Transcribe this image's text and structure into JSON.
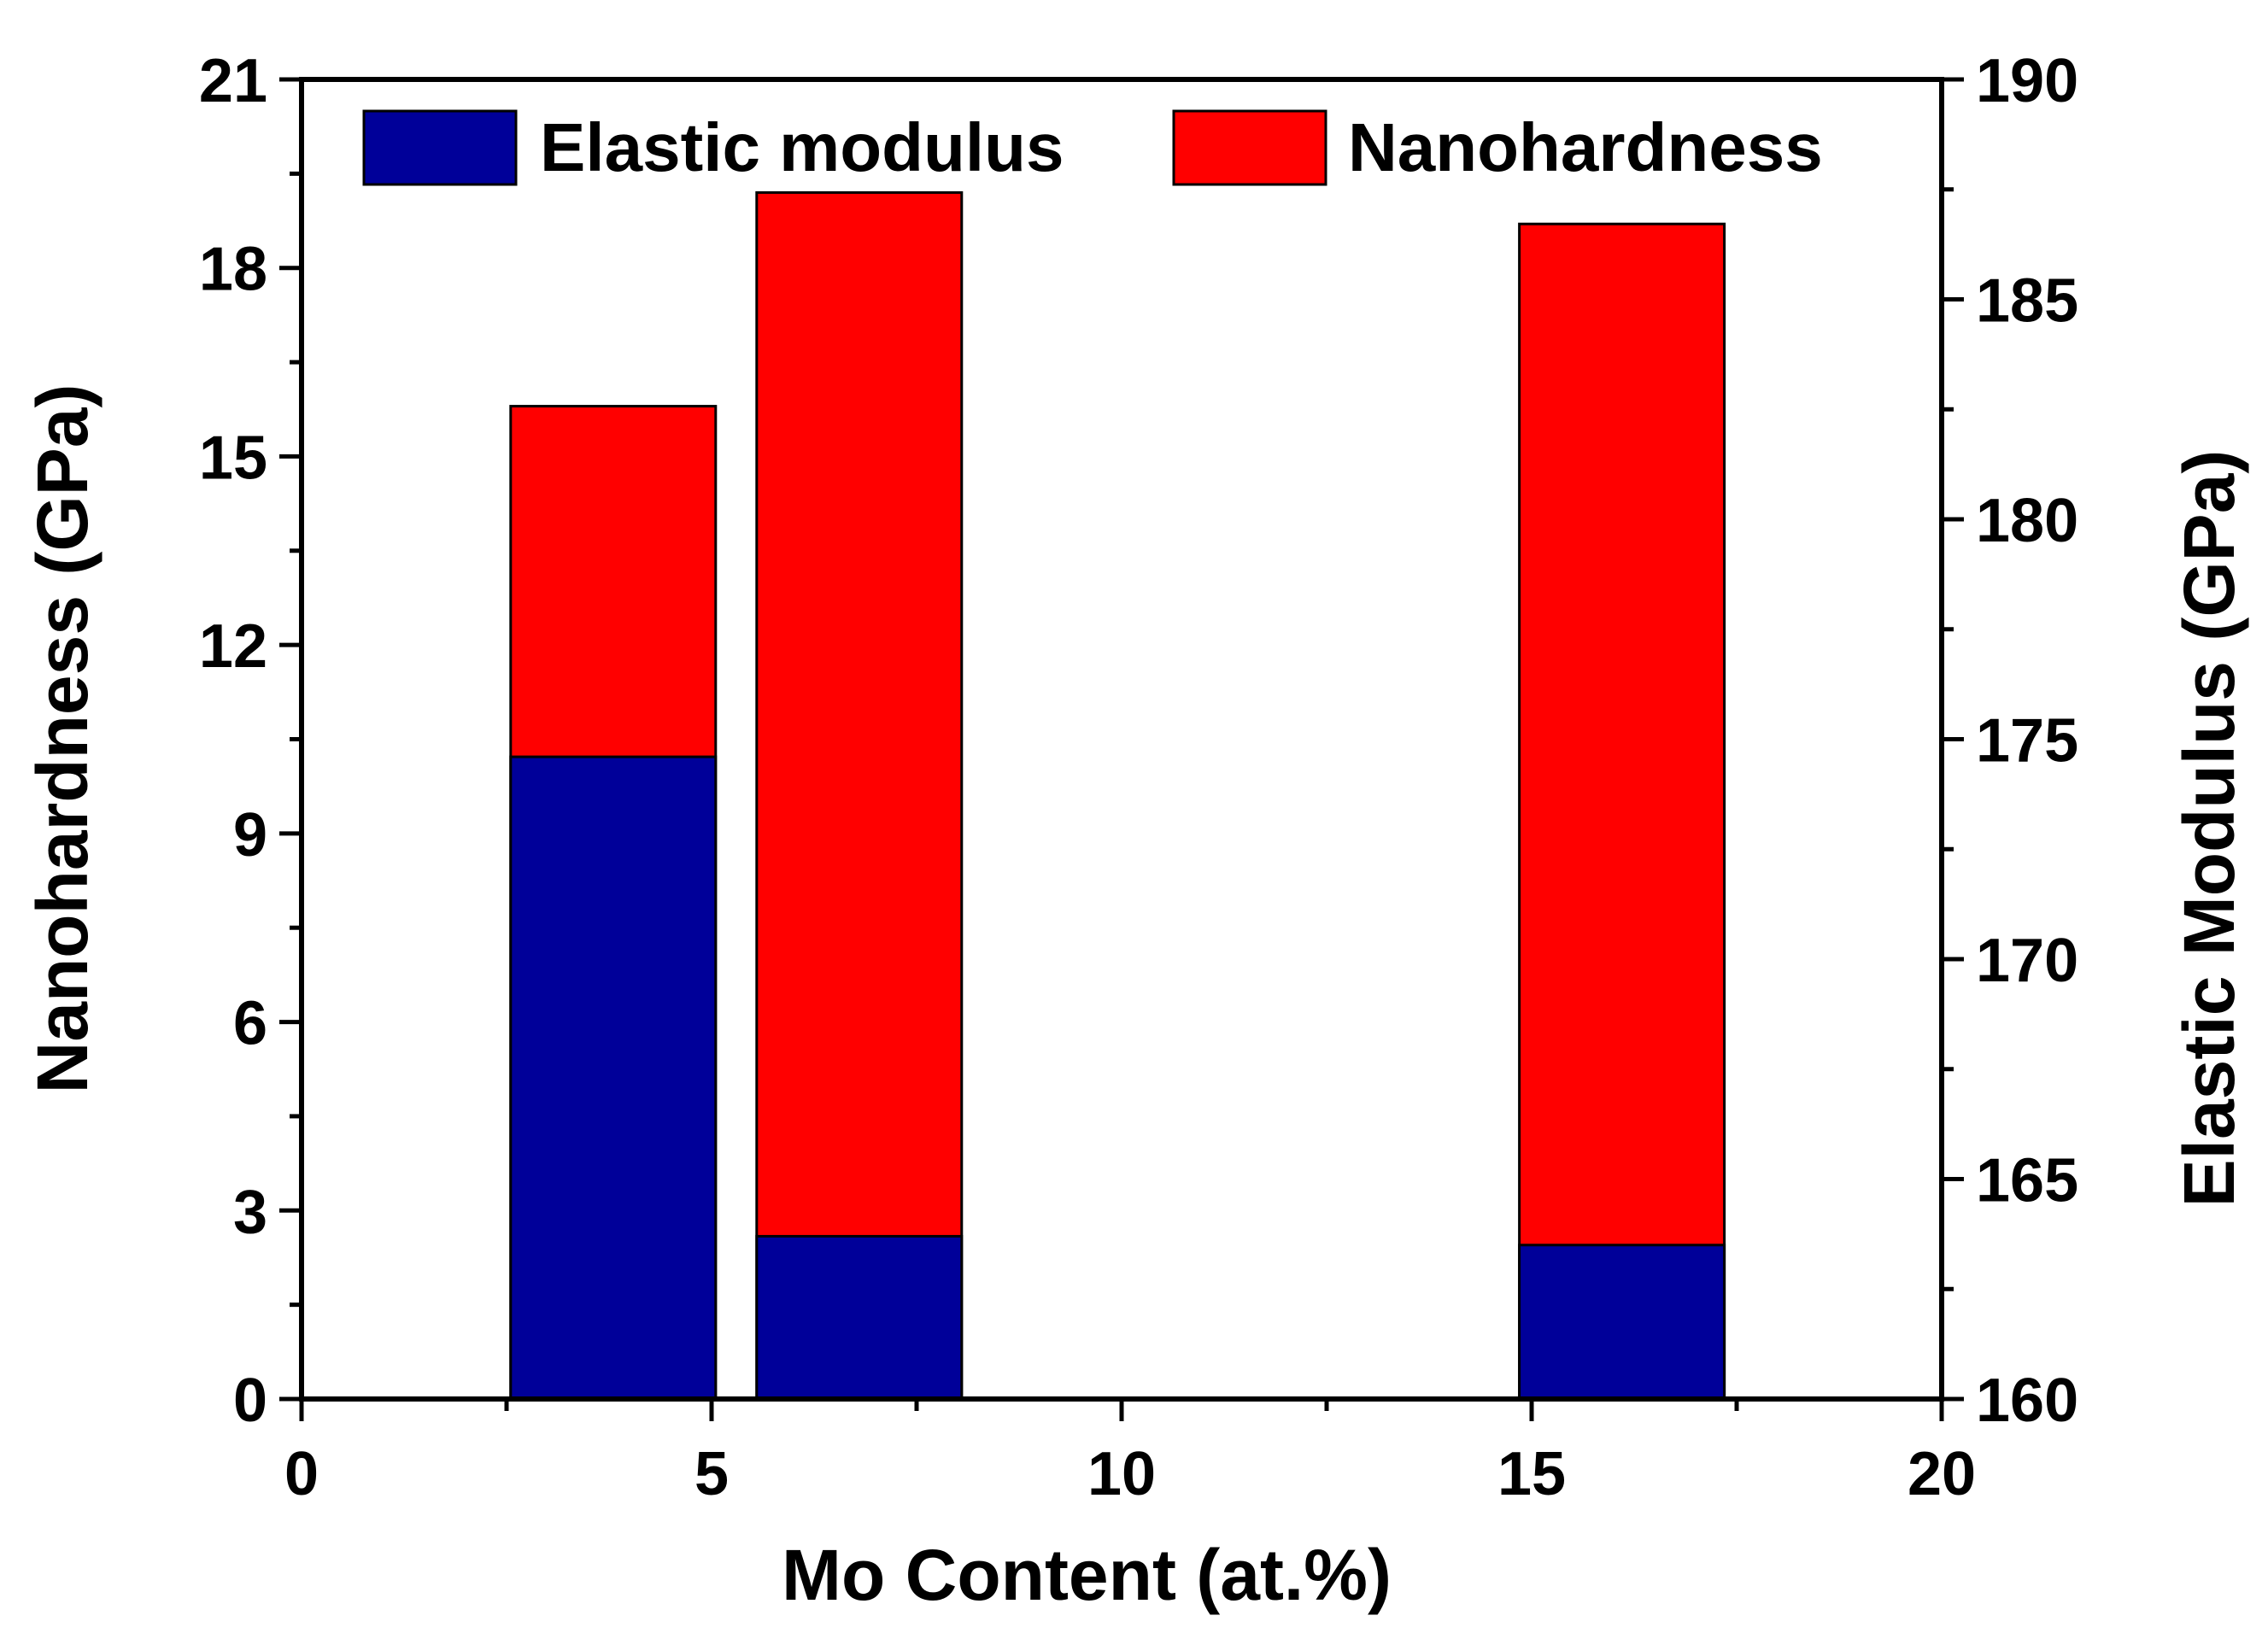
{
  "chart_data": {
    "type": "bar",
    "stacked": true,
    "title": "",
    "xlabel": "Mo Content (at.%)",
    "ylabel": "Nanohardness (GPa)",
    "y2label": "Elastic Modulus (GPa)",
    "xlim": [
      0,
      20
    ],
    "ylim": [
      0,
      21
    ],
    "y2lim": [
      160,
      190
    ],
    "xticks": [
      "0",
      "5",
      "10",
      "15",
      "20"
    ],
    "yticks": [
      "0",
      "3",
      "6",
      "9",
      "12",
      "15",
      "18",
      "21"
    ],
    "y2ticks": [
      "160",
      "165",
      "170",
      "175",
      "180",
      "185",
      "190"
    ],
    "bar_width": 2.5,
    "x": [
      3.8,
      6.8,
      16.1
    ],
    "series": [
      {
        "name": "Elastic modulus",
        "color": "#000099",
        "axis": "right",
        "values": [
          174.6,
          163.7,
          163.5
        ]
      },
      {
        "name": "Nanohardness",
        "color": "#ff0000",
        "axis": "left",
        "values": [
          15.8,
          19.2,
          18.7
        ]
      }
    ],
    "legend": {
      "placement": "top",
      "items": [
        "Elastic modulus",
        "Nanohardness"
      ]
    }
  }
}
